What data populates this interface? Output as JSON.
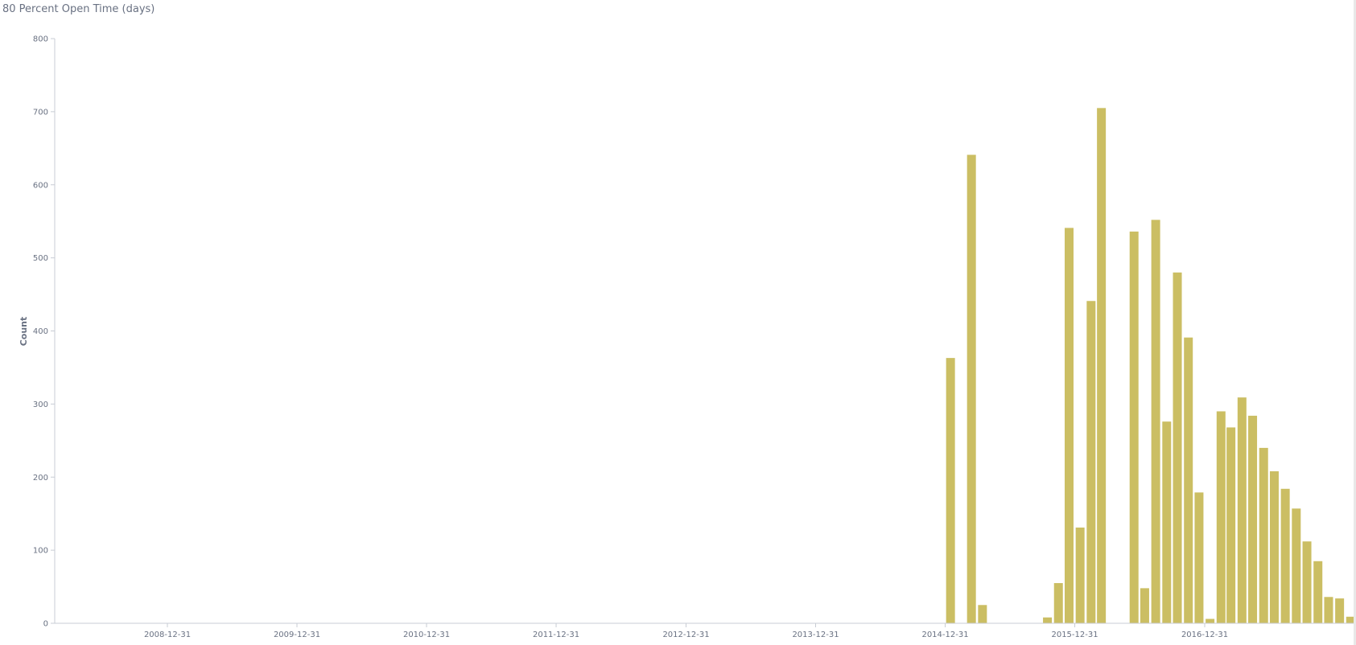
{
  "title": "80 Percent Open Time (days)",
  "chart_data": {
    "type": "bar",
    "ylabel": "Count",
    "xlabel": "",
    "ylim": [
      0,
      800
    ],
    "y_ticks": [
      0,
      100,
      200,
      300,
      400,
      500,
      600,
      700,
      800
    ],
    "x_range": [
      "2008-03-31",
      "2017-12-31"
    ],
    "x_ticks": [
      "2008-12-31",
      "2009-12-31",
      "2010-12-31",
      "2011-12-31",
      "2012-12-31",
      "2013-12-31",
      "2014-12-31",
      "2015-12-31",
      "2016-12-31"
    ],
    "bar_color": "#cbbe63",
    "grid": false,
    "bars": [
      {
        "date": "2015-01-15",
        "value": 363
      },
      {
        "date": "2015-03-15",
        "value": 641
      },
      {
        "date": "2015-04-15",
        "value": 25
      },
      {
        "date": "2015-10-15",
        "value": 8
      },
      {
        "date": "2015-11-15",
        "value": 55
      },
      {
        "date": "2015-12-15",
        "value": 541
      },
      {
        "date": "2016-01-15",
        "value": 131
      },
      {
        "date": "2016-02-15",
        "value": 441
      },
      {
        "date": "2016-03-15",
        "value": 705
      },
      {
        "date": "2016-06-15",
        "value": 536
      },
      {
        "date": "2016-07-15",
        "value": 48
      },
      {
        "date": "2016-08-15",
        "value": 552
      },
      {
        "date": "2016-09-15",
        "value": 276
      },
      {
        "date": "2016-10-15",
        "value": 480
      },
      {
        "date": "2016-11-15",
        "value": 391
      },
      {
        "date": "2016-12-15",
        "value": 179
      },
      {
        "date": "2017-01-15",
        "value": 6
      },
      {
        "date": "2017-02-15",
        "value": 290
      },
      {
        "date": "2017-03-15",
        "value": 268
      },
      {
        "date": "2017-04-15",
        "value": 309
      },
      {
        "date": "2017-05-15",
        "value": 284
      },
      {
        "date": "2017-06-15",
        "value": 240
      },
      {
        "date": "2017-07-15",
        "value": 208
      },
      {
        "date": "2017-08-15",
        "value": 184
      },
      {
        "date": "2017-09-15",
        "value": 157
      },
      {
        "date": "2017-10-15",
        "value": 112
      },
      {
        "date": "2017-11-15",
        "value": 85
      },
      {
        "date": "2017-12-15",
        "value": 36
      },
      {
        "date": "2018-01-15",
        "value": 34
      },
      {
        "date": "2018-02-15",
        "value": 9
      }
    ]
  }
}
